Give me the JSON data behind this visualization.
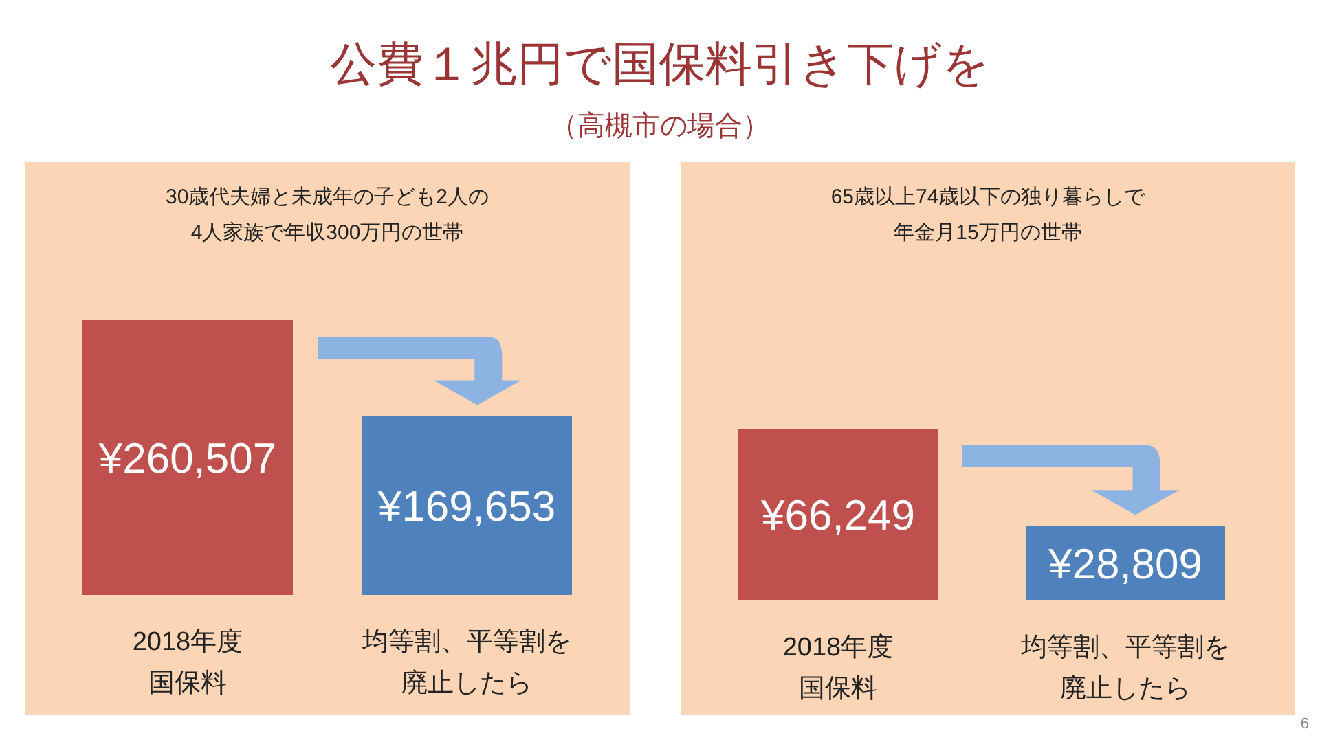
{
  "chart_data": [
    {
      "type": "bar",
      "title": "30歳代夫婦と未成年の子ども2人の4人家族で年収300万円の世帯",
      "categories": [
        "2018年度国保料",
        "均等割、平等割を廃止したら"
      ],
      "values": [
        260507,
        169653
      ],
      "colors": [
        "#c0504d",
        "#4f81bd"
      ],
      "value_labels": [
        "¥260,507",
        "¥169,653"
      ],
      "annotations": [
        "公費１兆円で国保料引き下げを",
        "（高槻市の場合）",
        "6"
      ]
    },
    {
      "type": "bar",
      "title": "65歳以上74歳以下の独り暮らしで年金月15万円の世帯",
      "categories": [
        "2018年度国保料",
        "均等割、平等割を廃止したら"
      ],
      "values": [
        66249,
        28809
      ],
      "colors": [
        "#c0504d",
        "#4f81bd"
      ],
      "value_labels": [
        "¥66,249",
        "¥28,809"
      ]
    }
  ]
}
